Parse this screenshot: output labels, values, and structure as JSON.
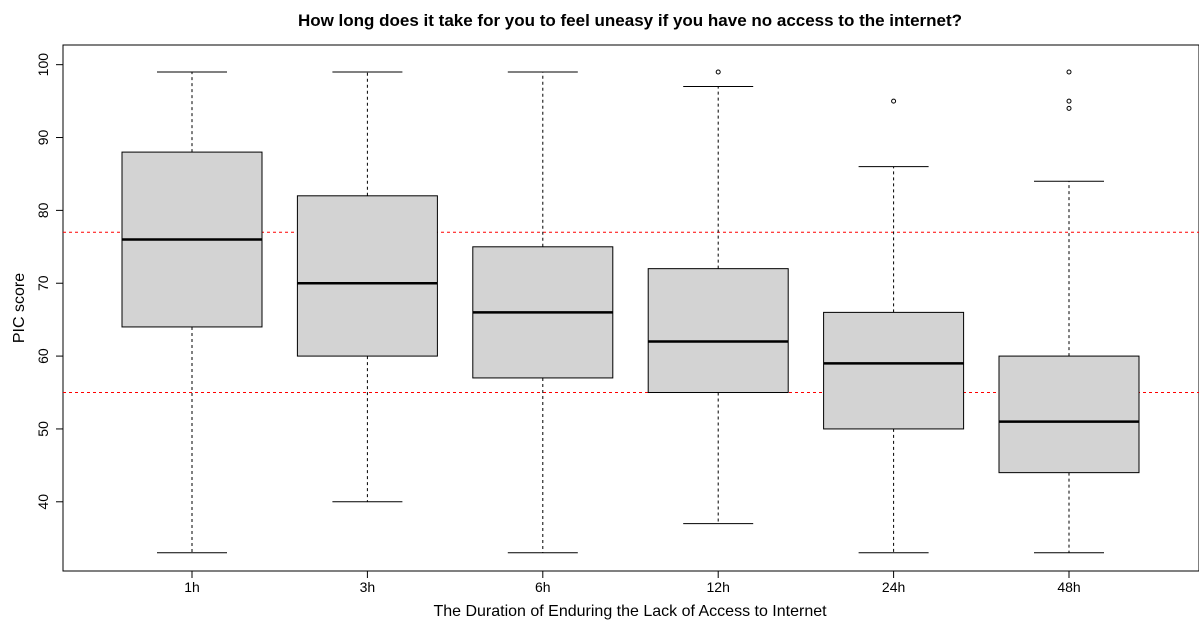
{
  "chart_data": {
    "type": "box",
    "title": "How long does it take for you to feel uneasy if you have no access to the internet?",
    "xlabel": "The Duration of Enduring the Lack of Access to Internet",
    "ylabel": "PIC score",
    "ylim": [
      30.5,
      102.7
    ],
    "yticks": [
      40,
      50,
      60,
      70,
      80,
      90,
      100
    ],
    "categories": [
      "1h",
      "3h",
      "6h",
      "12h",
      "24h",
      "48h"
    ],
    "boxes": [
      {
        "category": "1h",
        "min": 33,
        "q1": 64,
        "median": 76,
        "q3": 88,
        "max": 99,
        "outliers": []
      },
      {
        "category": "3h",
        "min": 40,
        "q1": 60,
        "median": 70,
        "q3": 82,
        "max": 99,
        "outliers": []
      },
      {
        "category": "6h",
        "min": 33,
        "q1": 57,
        "median": 66,
        "q3": 75,
        "max": 99,
        "outliers": []
      },
      {
        "category": "12h",
        "min": 37,
        "q1": 55,
        "median": 62,
        "q3": 72,
        "max": 97,
        "outliers": [
          99
        ]
      },
      {
        "category": "24h",
        "min": 33,
        "q1": 50,
        "median": 59,
        "q3": 66,
        "max": 86,
        "outliers": [
          95
        ]
      },
      {
        "category": "48h",
        "min": 33,
        "q1": 44,
        "median": 51,
        "q3": 60,
        "max": 84,
        "outliers": [
          94,
          95,
          99
        ]
      }
    ],
    "reference_lines": [
      77,
      55
    ],
    "colors": {
      "box_fill": "#d3d3d3",
      "box_stroke": "#000000",
      "reference_line": "#ff0000"
    },
    "grid": false,
    "legend": "none"
  }
}
